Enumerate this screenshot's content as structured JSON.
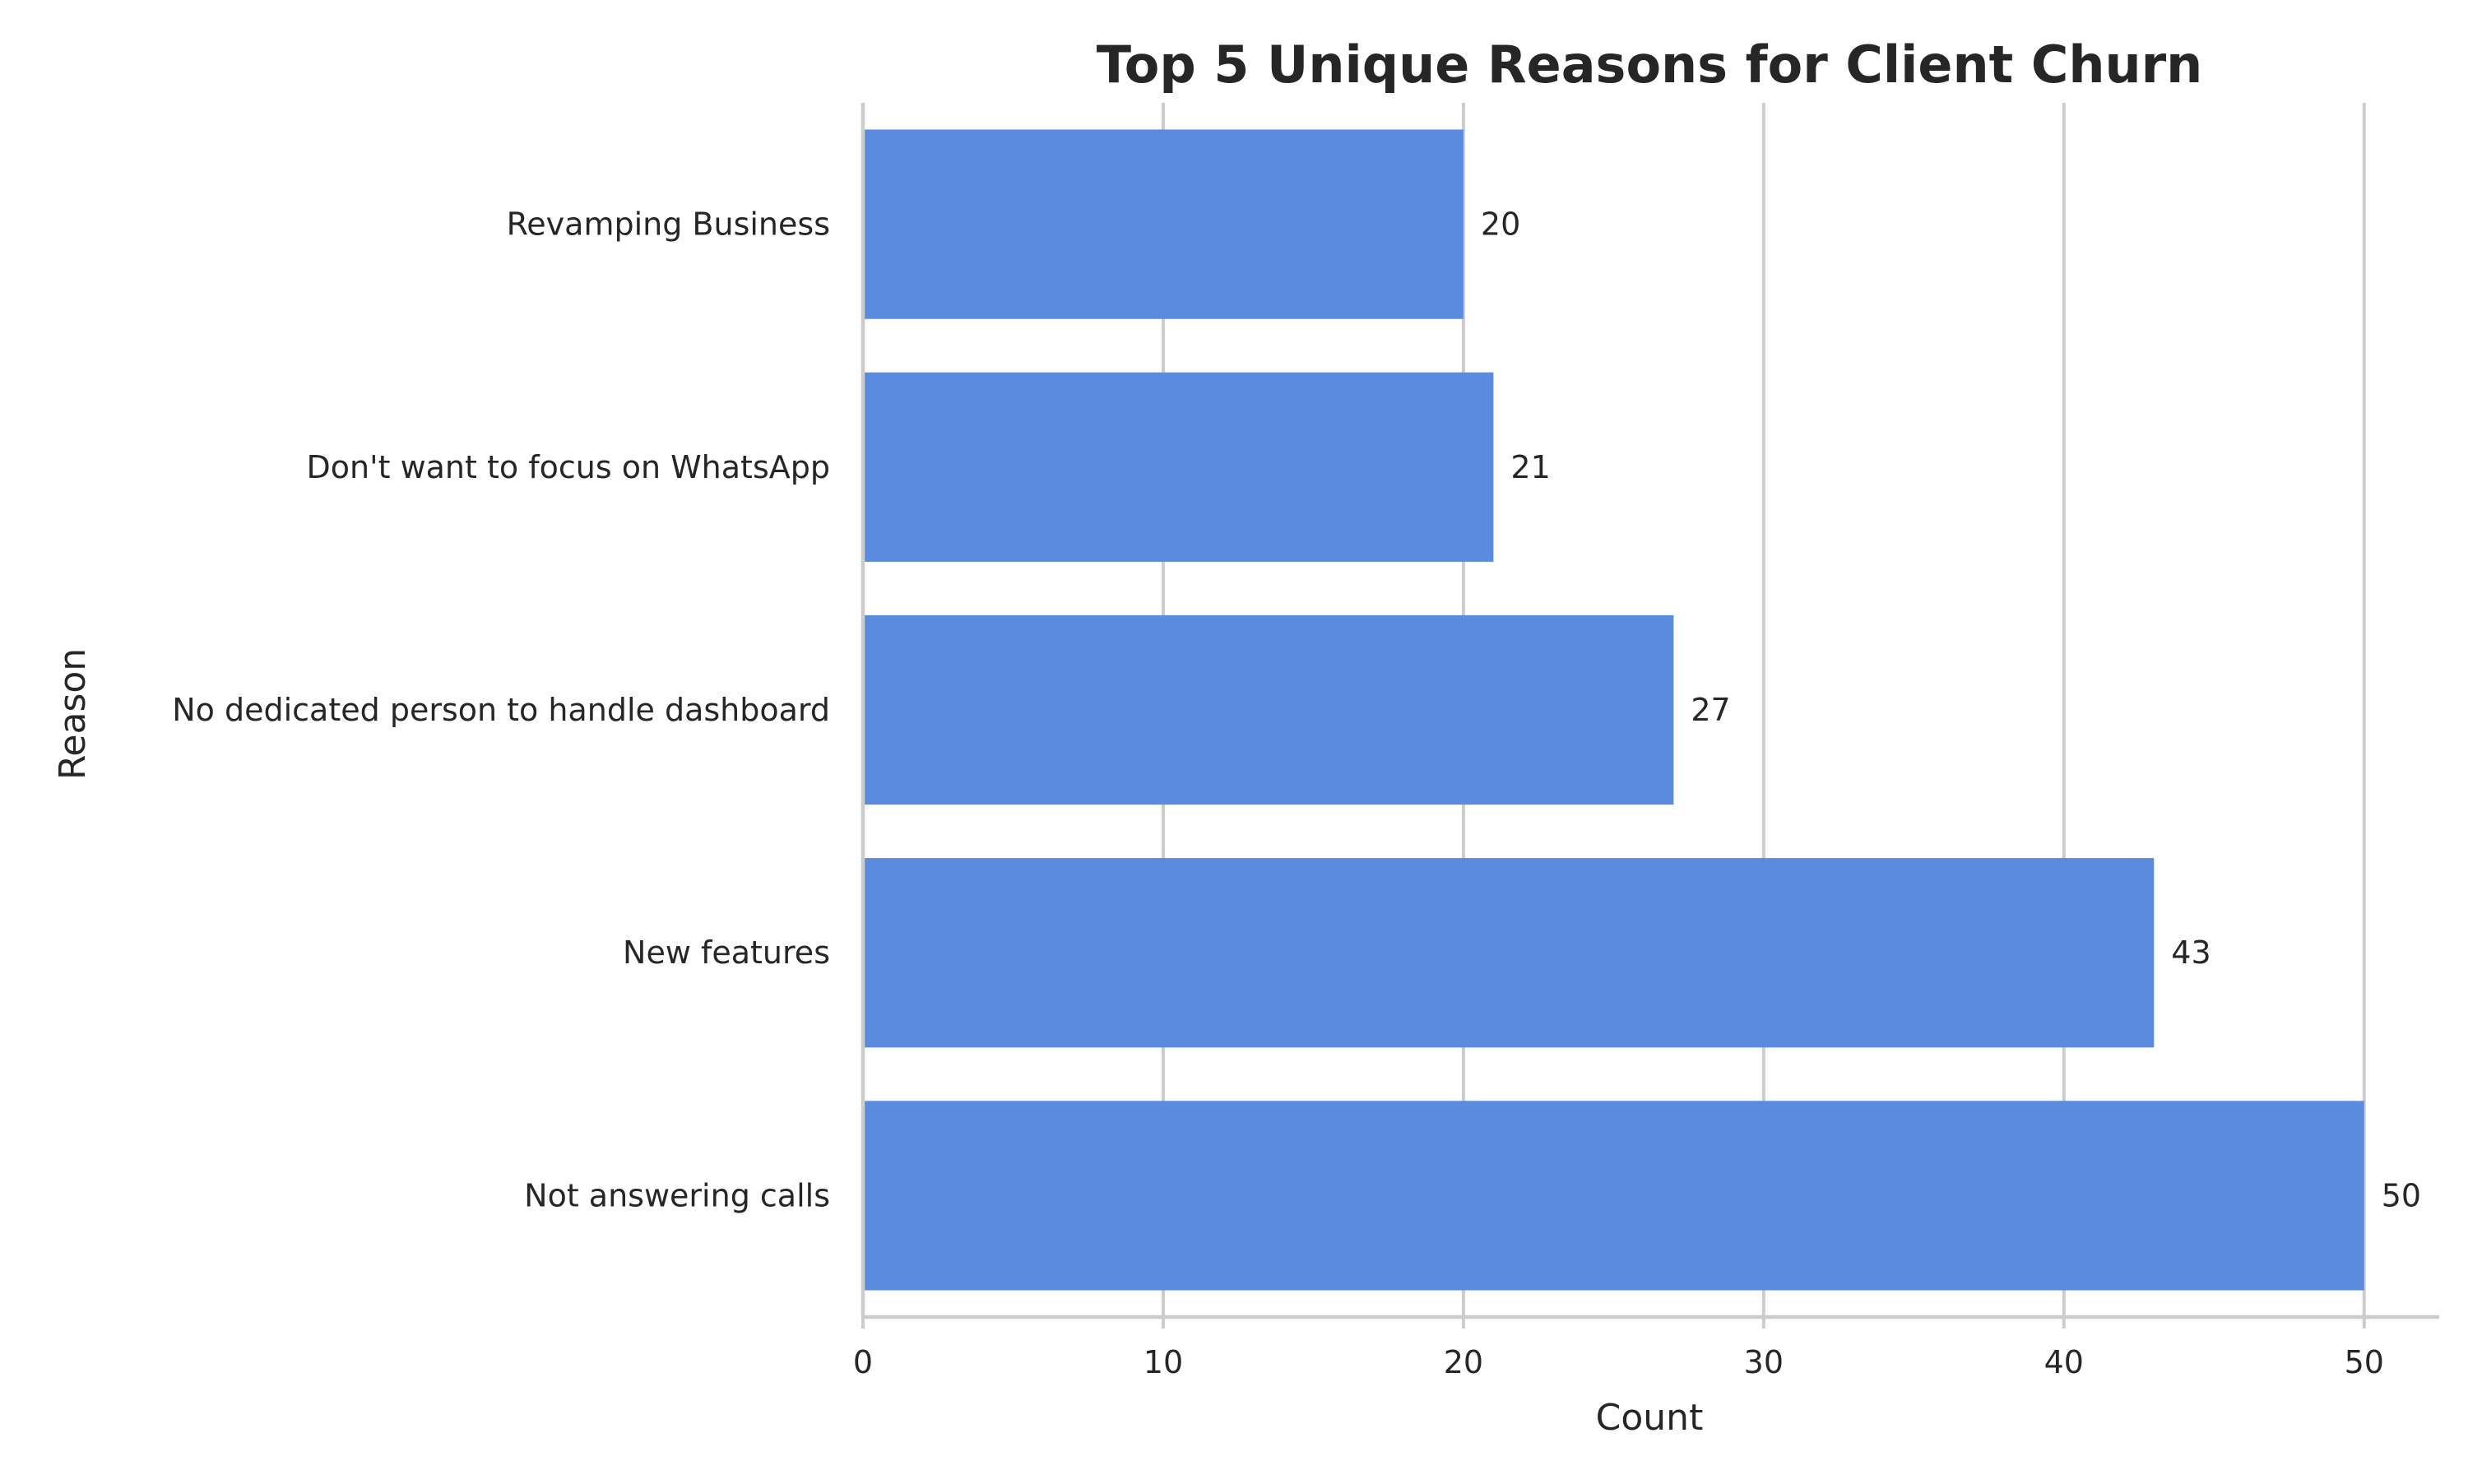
{
  "chart_data": {
    "type": "bar",
    "orientation": "horizontal",
    "title": "Top 5 Unique Reasons for Client Churn",
    "xlabel": "Count",
    "ylabel": "Reason",
    "categories": [
      "Revamping Business",
      "Don't want to focus on WhatsApp",
      "No dedicated person to handle dashboard",
      "New features",
      "Not answering calls"
    ],
    "values": [
      20,
      21,
      27,
      43,
      50
    ],
    "data_labels": [
      "20",
      "21",
      "27",
      "43",
      "50"
    ],
    "xlim": [
      0,
      52.5
    ],
    "xticks": [
      0,
      10,
      20,
      30,
      40,
      50
    ],
    "xtick_labels": [
      "0",
      "10",
      "20",
      "30",
      "40",
      "50"
    ],
    "grid": "vertical",
    "bar_color": "#5b8bdf",
    "legend": "none"
  }
}
